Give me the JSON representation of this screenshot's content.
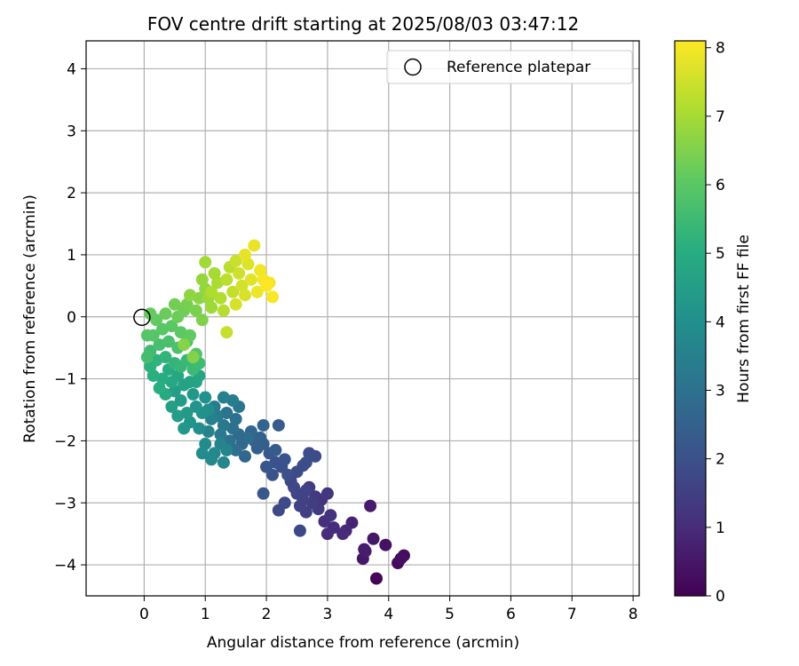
{
  "chart_data": {
    "type": "scatter",
    "title": "FOV centre drift starting at 2025/08/03 03:47:12",
    "xlabel": "Angular distance from reference (arcmin)",
    "ylabel": "Rotation from reference (arcmin)",
    "xlim": [
      -0.95,
      8.1
    ],
    "ylim": [
      -4.5,
      4.45
    ],
    "xticks": [
      0,
      1,
      2,
      3,
      4,
      5,
      6,
      7,
      8
    ],
    "yticks": [
      -4,
      -3,
      -2,
      -1,
      0,
      1,
      2,
      3,
      4
    ],
    "grid": true,
    "legend": {
      "position": "top-right",
      "entries": [
        "Reference platepar"
      ]
    },
    "reference_point": {
      "x": 0,
      "y": 0,
      "label": "Reference platepar"
    },
    "colorbar": {
      "label": "Hours from first FF file",
      "range": [
        0,
        8.1
      ],
      "ticks": [
        0,
        1,
        2,
        3,
        4,
        5,
        6,
        7,
        8
      ],
      "colormap": "viridis"
    },
    "series": [
      {
        "color_by": "hours",
        "points": [
          {
            "x": 3.8,
            "y": -4.22,
            "h": 0.1
          },
          {
            "x": 4.15,
            "y": -3.97,
            "h": 0.2
          },
          {
            "x": 4.25,
            "y": -3.85,
            "h": 0.25
          },
          {
            "x": 4.2,
            "y": -3.9,
            "h": 0.3
          },
          {
            "x": 3.95,
            "y": -3.68,
            "h": 0.4
          },
          {
            "x": 3.75,
            "y": -3.58,
            "h": 0.5
          },
          {
            "x": 3.7,
            "y": -3.05,
            "h": 0.6
          },
          {
            "x": 3.6,
            "y": -3.75,
            "h": 0.55
          },
          {
            "x": 3.58,
            "y": -3.9,
            "h": 0.5
          },
          {
            "x": 3.62,
            "y": -3.78,
            "h": 0.65
          },
          {
            "x": 3.4,
            "y": -3.32,
            "h": 0.8
          },
          {
            "x": 3.3,
            "y": -3.45,
            "h": 0.9
          },
          {
            "x": 3.25,
            "y": -3.5,
            "h": 0.95
          },
          {
            "x": 3.1,
            "y": -3.4,
            "h": 1.0
          },
          {
            "x": 3.0,
            "y": -3.5,
            "h": 1.05
          },
          {
            "x": 2.95,
            "y": -3.3,
            "h": 1.1
          },
          {
            "x": 3.05,
            "y": -3.2,
            "h": 1.15
          },
          {
            "x": 2.9,
            "y": -2.95,
            "h": 1.2
          },
          {
            "x": 3.0,
            "y": -2.85,
            "h": 1.25
          },
          {
            "x": 2.8,
            "y": -2.9,
            "h": 1.3
          },
          {
            "x": 2.7,
            "y": -2.75,
            "h": 1.35
          },
          {
            "x": 2.85,
            "y": -3.1,
            "h": 1.4
          },
          {
            "x": 2.75,
            "y": -3.0,
            "h": 1.45
          },
          {
            "x": 2.65,
            "y": -3.15,
            "h": 1.5
          },
          {
            "x": 2.6,
            "y": -2.95,
            "h": 1.55
          },
          {
            "x": 2.55,
            "y": -3.05,
            "h": 1.6
          },
          {
            "x": 2.65,
            "y": -2.8,
            "h": 1.62
          },
          {
            "x": 2.5,
            "y": -2.85,
            "h": 1.65
          },
          {
            "x": 2.4,
            "y": -2.65,
            "h": 1.7
          },
          {
            "x": 2.45,
            "y": -2.75,
            "h": 1.72
          },
          {
            "x": 2.55,
            "y": -3.45,
            "h": 1.75
          },
          {
            "x": 2.3,
            "y": -3.0,
            "h": 1.78
          },
          {
            "x": 2.2,
            "y": -3.12,
            "h": 1.8
          },
          {
            "x": 2.5,
            "y": -2.5,
            "h": 1.82
          },
          {
            "x": 2.6,
            "y": -2.4,
            "h": 1.85
          },
          {
            "x": 2.7,
            "y": -2.2,
            "h": 1.87
          },
          {
            "x": 2.8,
            "y": -2.25,
            "h": 1.9
          },
          {
            "x": 2.65,
            "y": -2.35,
            "h": 1.92
          },
          {
            "x": 2.35,
            "y": -2.55,
            "h": 1.95
          },
          {
            "x": 2.25,
            "y": -2.42,
            "h": 1.97
          },
          {
            "x": 2.15,
            "y": -2.35,
            "h": 2.0
          },
          {
            "x": 2.3,
            "y": -2.3,
            "h": 2.05
          },
          {
            "x": 2.1,
            "y": -2.55,
            "h": 2.1
          },
          {
            "x": 2.0,
            "y": -2.42,
            "h": 2.15
          },
          {
            "x": 1.95,
            "y": -2.85,
            "h": 2.2
          },
          {
            "x": 2.05,
            "y": -2.2,
            "h": 2.25
          },
          {
            "x": 2.15,
            "y": -2.15,
            "h": 2.3
          },
          {
            "x": 2.2,
            "y": -1.75,
            "h": 2.35
          },
          {
            "x": 1.95,
            "y": -2.05,
            "h": 2.4
          },
          {
            "x": 1.85,
            "y": -2.12,
            "h": 2.45
          },
          {
            "x": 1.9,
            "y": -1.95,
            "h": 2.5
          },
          {
            "x": 1.8,
            "y": -2.0,
            "h": 2.55
          },
          {
            "x": 1.95,
            "y": -1.75,
            "h": 2.6
          },
          {
            "x": 1.75,
            "y": -1.85,
            "h": 2.65
          },
          {
            "x": 1.65,
            "y": -2.25,
            "h": 2.7
          },
          {
            "x": 1.6,
            "y": -2.05,
            "h": 2.75
          },
          {
            "x": 1.55,
            "y": -1.9,
            "h": 2.8
          },
          {
            "x": 1.7,
            "y": -1.95,
            "h": 2.85
          },
          {
            "x": 1.5,
            "y": -2.15,
            "h": 2.9
          },
          {
            "x": 1.45,
            "y": -1.8,
            "h": 2.95
          },
          {
            "x": 1.4,
            "y": -2.0,
            "h": 3.0
          },
          {
            "x": 1.5,
            "y": -1.65,
            "h": 3.05
          },
          {
            "x": 1.35,
            "y": -1.55,
            "h": 3.1
          },
          {
            "x": 1.55,
            "y": -1.45,
            "h": 3.15
          },
          {
            "x": 1.3,
            "y": -1.75,
            "h": 3.2
          },
          {
            "x": 1.25,
            "y": -1.9,
            "h": 3.25
          },
          {
            "x": 1.2,
            "y": -1.6,
            "h": 3.3
          },
          {
            "x": 1.15,
            "y": -1.45,
            "h": 3.35
          },
          {
            "x": 1.45,
            "y": -1.35,
            "h": 3.4
          },
          {
            "x": 1.3,
            "y": -1.3,
            "h": 3.45
          },
          {
            "x": 1.1,
            "y": -1.65,
            "h": 3.5
          },
          {
            "x": 1.05,
            "y": -1.85,
            "h": 3.55
          },
          {
            "x": 1.25,
            "y": -2.05,
            "h": 3.6
          },
          {
            "x": 1.35,
            "y": -2.15,
            "h": 3.65
          },
          {
            "x": 1.3,
            "y": -2.35,
            "h": 3.7
          },
          {
            "x": 1.15,
            "y": -2.2,
            "h": 3.75
          },
          {
            "x": 1.1,
            "y": -2.3,
            "h": 3.8
          },
          {
            "x": 1.0,
            "y": -2.05,
            "h": 3.85
          },
          {
            "x": 0.95,
            "y": -2.2,
            "h": 3.9
          },
          {
            "x": 1.05,
            "y": -1.5,
            "h": 3.95
          },
          {
            "x": 0.9,
            "y": -1.8,
            "h": 4.0
          },
          {
            "x": 0.95,
            "y": -1.55,
            "h": 4.05
          },
          {
            "x": 1.0,
            "y": -1.3,
            "h": 4.1
          },
          {
            "x": 0.85,
            "y": -1.45,
            "h": 4.15
          },
          {
            "x": 0.75,
            "y": -1.7,
            "h": 4.2
          },
          {
            "x": 0.65,
            "y": -1.8,
            "h": 4.25
          },
          {
            "x": 0.8,
            "y": -1.25,
            "h": 4.3
          },
          {
            "x": 0.7,
            "y": -1.55,
            "h": 4.35
          },
          {
            "x": 0.6,
            "y": -1.35,
            "h": 4.4
          },
          {
            "x": 0.55,
            "y": -1.6,
            "h": 4.45
          },
          {
            "x": 0.5,
            "y": -1.2,
            "h": 4.5
          },
          {
            "x": 0.45,
            "y": -1.45,
            "h": 4.55
          },
          {
            "x": 0.65,
            "y": -1.1,
            "h": 4.6
          },
          {
            "x": 0.75,
            "y": -1.05,
            "h": 4.65
          },
          {
            "x": 0.85,
            "y": -1.05,
            "h": 4.7
          },
          {
            "x": 0.9,
            "y": -0.95,
            "h": 4.75
          },
          {
            "x": 0.55,
            "y": -0.95,
            "h": 4.8
          },
          {
            "x": 0.45,
            "y": -1.05,
            "h": 4.85
          },
          {
            "x": 0.35,
            "y": -1.25,
            "h": 4.9
          },
          {
            "x": 0.4,
            "y": -0.85,
            "h": 4.95
          },
          {
            "x": 0.3,
            "y": -1.0,
            "h": 5.0
          },
          {
            "x": 0.25,
            "y": -1.15,
            "h": 5.05
          },
          {
            "x": 0.15,
            "y": -0.95,
            "h": 5.1
          },
          {
            "x": 0.1,
            "y": -0.8,
            "h": 5.15
          },
          {
            "x": 0.2,
            "y": -0.7,
            "h": 5.2
          },
          {
            "x": 0.35,
            "y": -0.65,
            "h": 5.25
          },
          {
            "x": 0.5,
            "y": -0.75,
            "h": 5.3
          },
          {
            "x": 0.6,
            "y": -0.8,
            "h": 5.35
          },
          {
            "x": 0.7,
            "y": -0.7,
            "h": 5.4
          },
          {
            "x": 0.8,
            "y": -0.85,
            "h": 5.45
          },
          {
            "x": 0.9,
            "y": -0.75,
            "h": 5.5
          },
          {
            "x": 0.1,
            "y": -0.55,
            "h": 5.55
          },
          {
            "x": 0.05,
            "y": -0.65,
            "h": 5.6
          },
          {
            "x": 0.25,
            "y": -0.45,
            "h": 5.65
          },
          {
            "x": 0.4,
            "y": -0.4,
            "h": 5.7
          },
          {
            "x": 0.55,
            "y": -0.5,
            "h": 5.75
          },
          {
            "x": 0.7,
            "y": -0.4,
            "h": 5.8
          },
          {
            "x": 0.85,
            "y": -0.6,
            "h": 5.85
          },
          {
            "x": 0.15,
            "y": -0.3,
            "h": 5.9
          },
          {
            "x": 0.05,
            "y": -0.3,
            "h": 5.92
          },
          {
            "x": 0.3,
            "y": -0.2,
            "h": 5.95
          },
          {
            "x": 0.45,
            "y": -0.15,
            "h": 6.0
          },
          {
            "x": 0.6,
            "y": -0.25,
            "h": 6.05
          },
          {
            "x": 0.75,
            "y": -0.3,
            "h": 6.1
          },
          {
            "x": 0.2,
            "y": -0.05,
            "h": 6.12
          },
          {
            "x": 0.1,
            "y": 0.05,
            "h": 6.15
          },
          {
            "x": 0.35,
            "y": 0.05,
            "h": 6.2
          },
          {
            "x": 0.55,
            "y": 0.0,
            "h": 6.25
          },
          {
            "x": 0.65,
            "y": 0.1,
            "h": 6.3
          },
          {
            "x": 0.5,
            "y": 0.2,
            "h": 6.35
          },
          {
            "x": 0.7,
            "y": 0.2,
            "h": 6.4
          },
          {
            "x": 0.85,
            "y": 0.1,
            "h": 6.45
          },
          {
            "x": 0.95,
            "y": -0.05,
            "h": 6.5
          },
          {
            "x": 0.8,
            "y": -0.65,
            "h": 6.55
          },
          {
            "x": 0.65,
            "y": -0.45,
            "h": 6.6
          },
          {
            "x": 0.9,
            "y": 0.3,
            "h": 6.65
          },
          {
            "x": 0.75,
            "y": 0.35,
            "h": 6.7
          },
          {
            "x": 1.0,
            "y": 0.45,
            "h": 6.75
          },
          {
            "x": 0.95,
            "y": 0.6,
            "h": 6.8
          },
          {
            "x": 1.05,
            "y": 0.3,
            "h": 6.85
          },
          {
            "x": 1.1,
            "y": 0.15,
            "h": 6.9
          },
          {
            "x": 1.0,
            "y": 0.88,
            "h": 6.95
          },
          {
            "x": 1.15,
            "y": 0.7,
            "h": 7.0
          },
          {
            "x": 1.2,
            "y": 0.55,
            "h": 7.05
          },
          {
            "x": 1.1,
            "y": 0.4,
            "h": 7.1
          },
          {
            "x": 1.25,
            "y": 0.3,
            "h": 7.15
          },
          {
            "x": 1.3,
            "y": 0.1,
            "h": 7.2
          },
          {
            "x": 1.4,
            "y": 0.8,
            "h": 7.25
          },
          {
            "x": 1.35,
            "y": 0.6,
            "h": 7.3
          },
          {
            "x": 1.45,
            "y": 0.4,
            "h": 7.35
          },
          {
            "x": 1.35,
            "y": -0.25,
            "h": 7.4
          },
          {
            "x": 1.5,
            "y": 0.9,
            "h": 7.45
          },
          {
            "x": 1.55,
            "y": 0.7,
            "h": 7.5
          },
          {
            "x": 1.6,
            "y": 0.5,
            "h": 7.55
          },
          {
            "x": 1.5,
            "y": 0.2,
            "h": 7.6
          },
          {
            "x": 1.65,
            "y": 0.35,
            "h": 7.65
          },
          {
            "x": 1.7,
            "y": 0.85,
            "h": 7.7
          },
          {
            "x": 1.75,
            "y": 0.6,
            "h": 7.75
          },
          {
            "x": 1.65,
            "y": 1.0,
            "h": 7.8
          },
          {
            "x": 1.8,
            "y": 1.15,
            "h": 7.85
          },
          {
            "x": 1.85,
            "y": 0.4,
            "h": 7.9
          },
          {
            "x": 1.9,
            "y": 0.75,
            "h": 7.95
          },
          {
            "x": 1.95,
            "y": 0.6,
            "h": 8.0
          },
          {
            "x": 2.05,
            "y": 0.55,
            "h": 8.02
          },
          {
            "x": 2.1,
            "y": 0.32,
            "h": 8.05
          },
          {
            "x": 2.0,
            "y": 0.5,
            "h": 8.07
          }
        ]
      }
    ]
  }
}
